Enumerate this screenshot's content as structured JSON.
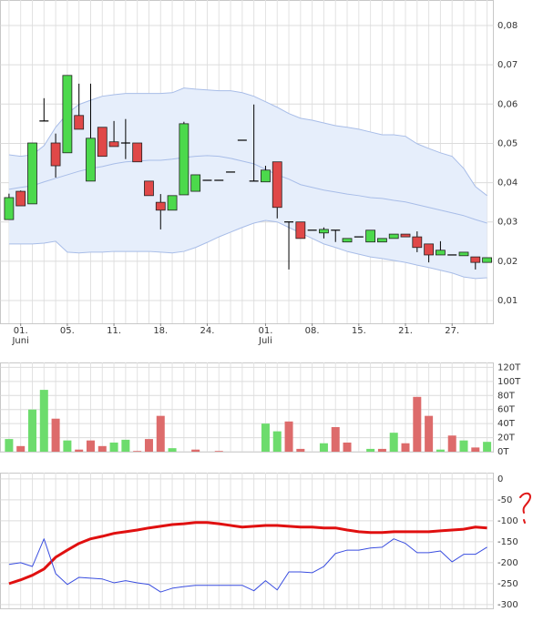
{
  "chart_data": [
    {
      "type": "candlestick",
      "categories": [
        null,
        "01.",
        null,
        null,
        null,
        "05.",
        null,
        null,
        null,
        "11.",
        null,
        null,
        null,
        "18.",
        null,
        null,
        null,
        "24.",
        null,
        null,
        null,
        null,
        "01.",
        null,
        null,
        null,
        "08.",
        null,
        null,
        null,
        "15.",
        null,
        null,
        null,
        "21.",
        null,
        null,
        null,
        "27.",
        null,
        null,
        null
      ],
      "month_labels": [
        null,
        "Juni",
        null,
        null,
        null,
        null,
        null,
        null,
        null,
        null,
        null,
        null,
        null,
        null,
        null,
        null,
        null,
        null,
        null,
        null,
        null,
        null,
        "Juli",
        null,
        null,
        null,
        null,
        null,
        null,
        null,
        null,
        null,
        null,
        null,
        null,
        null,
        null,
        null,
        null,
        null,
        null,
        null
      ],
      "open": [
        0.0306,
        0.0378,
        0.0346,
        0.0557,
        0.0501,
        0.0476,
        0.0571,
        0.0404,
        0.0541,
        0.0504,
        0.0501,
        0.0501,
        0.0404,
        0.035,
        0.033,
        0.0369,
        0.0378,
        0.0406,
        0.0406,
        0.0427,
        0.0508,
        0.0404,
        0.0402,
        0.0453,
        0.03,
        0.03,
        0.0279,
        0.0272,
        0.0279,
        0.0249,
        0.0262,
        0.0249,
        0.0249,
        0.0258,
        0.0269,
        0.0262,
        0.0244,
        0.0216,
        0.0216,
        0.0214,
        0.0211,
        0.0197
      ],
      "high": [
        0.0372,
        0.038,
        0.0501,
        0.0615,
        0.0525,
        0.0673,
        0.0652,
        0.0652,
        0.0541,
        0.0557,
        0.0562,
        0.0501,
        0.0404,
        0.0371,
        0.0367,
        0.0555,
        0.042,
        0.0406,
        0.0406,
        0.0427,
        0.0508,
        0.0599,
        0.0443,
        0.0453,
        0.03,
        0.03,
        0.0279,
        0.0286,
        0.0279,
        0.0258,
        0.0262,
        0.0279,
        0.0258,
        0.0269,
        0.0269,
        0.0276,
        0.0244,
        0.0251,
        0.0216,
        0.0223,
        0.0211,
        0.0209
      ],
      "low": [
        0.0306,
        0.0341,
        0.0346,
        0.0557,
        0.0413,
        0.0476,
        0.0536,
        0.0404,
        0.0467,
        0.0492,
        0.046,
        0.0453,
        0.0367,
        0.0281,
        0.033,
        0.0369,
        0.0378,
        0.0406,
        0.0406,
        0.0427,
        0.0508,
        0.0404,
        0.0402,
        0.0309,
        0.0179,
        0.0258,
        0.0279,
        0.0258,
        0.0249,
        0.0249,
        0.0262,
        0.0249,
        0.0249,
        0.0258,
        0.0262,
        0.0223,
        0.0197,
        0.0216,
        0.0216,
        0.0214,
        0.0179,
        0.0197
      ],
      "close": [
        0.0362,
        0.0341,
        0.0501,
        0.0557,
        0.0443,
        0.0673,
        0.0536,
        0.0513,
        0.0467,
        0.0492,
        0.0501,
        0.0453,
        0.0367,
        0.033,
        0.0367,
        0.055,
        0.042,
        0.0406,
        0.0406,
        0.0427,
        0.0508,
        0.0404,
        0.0432,
        0.0337,
        0.03,
        0.0258,
        0.0279,
        0.0281,
        0.0279,
        0.0258,
        0.0262,
        0.0279,
        0.0258,
        0.0269,
        0.0262,
        0.0235,
        0.0216,
        0.0228,
        0.0216,
        0.0223,
        0.0197,
        0.0209
      ],
      "up_color": "#4cd94c",
      "down_color": "#e04848",
      "flat_color": "#000000",
      "bands": {
        "upper": [
          0.0471,
          0.0467,
          0.0471,
          0.0494,
          0.0541,
          0.0576,
          0.0599,
          0.061,
          0.062,
          0.0624,
          0.0627,
          0.0627,
          0.0627,
          0.0627,
          0.0629,
          0.0641,
          0.0638,
          0.0636,
          0.0634,
          0.0634,
          0.0629,
          0.062,
          0.0606,
          0.0592,
          0.0576,
          0.0564,
          0.0559,
          0.0552,
          0.0545,
          0.0541,
          0.0536,
          0.0529,
          0.0522,
          0.0522,
          0.0518,
          0.0499,
          0.0487,
          0.0476,
          0.0467,
          0.0436,
          0.039,
          0.0367
        ],
        "middle": [
          0.0383,
          0.0388,
          0.0392,
          0.0402,
          0.0411,
          0.042,
          0.0429,
          0.0436,
          0.0441,
          0.0448,
          0.0453,
          0.0455,
          0.0457,
          0.0457,
          0.046,
          0.0464,
          0.0467,
          0.0469,
          0.0467,
          0.0462,
          0.0455,
          0.0448,
          0.0434,
          0.042,
          0.0409,
          0.0395,
          0.0388,
          0.0381,
          0.0376,
          0.0371,
          0.0367,
          0.0362,
          0.036,
          0.0355,
          0.0351,
          0.0344,
          0.0337,
          0.033,
          0.0323,
          0.0316,
          0.0306,
          0.0297
        ],
        "lower": [
          0.0244,
          0.0244,
          0.0244,
          0.0246,
          0.0251,
          0.0223,
          0.0221,
          0.0223,
          0.0223,
          0.0225,
          0.0225,
          0.0225,
          0.0225,
          0.0223,
          0.0221,
          0.0225,
          0.0235,
          0.0248,
          0.0262,
          0.0274,
          0.0286,
          0.0297,
          0.0304,
          0.03,
          0.0286,
          0.0272,
          0.0258,
          0.0244,
          0.0235,
          0.0225,
          0.0218,
          0.0211,
          0.0207,
          0.0202,
          0.0197,
          0.019,
          0.0184,
          0.0177,
          0.017,
          0.016,
          0.0156,
          0.0158
        ],
        "line_color": "#a8bde8",
        "fill_color": "#e6eefb"
      },
      "ylim": [
        0.0042,
        0.0865
      ],
      "yticks": [
        {
          "value": 0.01,
          "label": "0,01"
        },
        {
          "value": 0.02,
          "label": "0,02"
        },
        {
          "value": 0.03,
          "label": "0,03"
        },
        {
          "value": 0.04,
          "label": "0,04"
        },
        {
          "value": 0.05,
          "label": "0,05"
        },
        {
          "value": 0.06,
          "label": "0,06"
        },
        {
          "value": 0.07,
          "label": "0,07"
        },
        {
          "value": 0.08,
          "label": "0,08"
        }
      ],
      "grid": true
    },
    {
      "type": "bar",
      "values": [
        18,
        8,
        60,
        88,
        47,
        16,
        3,
        16,
        8,
        13,
        17,
        1,
        18,
        51,
        5,
        0,
        3,
        0,
        1,
        0,
        0,
        0,
        40,
        29,
        43,
        4,
        0,
        12,
        35,
        13,
        0,
        4,
        4,
        27,
        12,
        78,
        51,
        3,
        23,
        16,
        6,
        14
      ],
      "colors": [
        "#6ddc6d",
        "#dd6b6b",
        "#6ddc6d",
        "#6ddc6d",
        "#dd6b6b",
        "#6ddc6d",
        "#dd6b6b",
        "#dd6b6b",
        "#dd6b6b",
        "#6ddc6d",
        "#6ddc6d",
        "#dd6b6b",
        "#dd6b6b",
        "#dd6b6b",
        "#6ddc6d",
        "#6ddc6d",
        "#dd6b6b",
        "#dd6b6b",
        "#dd6b6b",
        "#dd6b6b",
        "#dd6b6b",
        "#dd6b6b",
        "#6ddc6d",
        "#6ddc6d",
        "#dd6b6b",
        "#dd6b6b",
        "#dd6b6b",
        "#6ddc6d",
        "#dd6b6b",
        "#dd6b6b",
        "#dd6b6b",
        "#6ddc6d",
        "#dd6b6b",
        "#6ddc6d",
        "#dd6b6b",
        "#dd6b6b",
        "#dd6b6b",
        "#6ddc6d",
        "#dd6b6b",
        "#6ddc6d",
        "#dd6b6b",
        "#6ddc6d"
      ],
      "ylim": [
        0,
        127
      ],
      "yticks": [
        {
          "value": 0,
          "label": "0T"
        },
        {
          "value": 20,
          "label": "20T"
        },
        {
          "value": 40,
          "label": "40T"
        },
        {
          "value": 60,
          "label": "60T"
        },
        {
          "value": 80,
          "label": "80T"
        },
        {
          "value": 100,
          "label": "100T"
        },
        {
          "value": 120,
          "label": "120T"
        }
      ],
      "grid": true
    },
    {
      "type": "line",
      "series": [
        {
          "color": "#e01010",
          "width": 3,
          "values": [
            -250,
            -241,
            -230,
            -215,
            -187,
            -170,
            -154,
            -143,
            -137,
            -130,
            -126,
            -122,
            -117,
            -113,
            -109,
            -107,
            -104,
            -104,
            -107,
            -111,
            -115,
            -113,
            -111,
            -111,
            -113,
            -115,
            -115,
            -117,
            -117,
            -122,
            -126,
            -128,
            -128,
            -126,
            -126,
            -126,
            -126,
            -124,
            -122,
            -120,
            -115,
            -117
          ]
        },
        {
          "color": "#3a4ee0",
          "width": 1,
          "values": [
            -204,
            -200,
            -209,
            -143,
            -226,
            -252,
            -235,
            -237,
            -239,
            -248,
            -243,
            -248,
            -252,
            -270,
            -261,
            -257,
            -254,
            -254,
            -254,
            -254,
            -254,
            -267,
            -243,
            -265,
            -222,
            -222,
            -224,
            -209,
            -178,
            -170,
            -170,
            -165,
            -163,
            -143,
            -154,
            -176,
            -176,
            -172,
            -198,
            -180,
            -180,
            -163
          ]
        }
      ],
      "ylim": [
        -309,
        15
      ],
      "yticks": [
        -300,
        -250,
        -200,
        -150,
        -100,
        -50,
        0
      ],
      "grid": true
    }
  ]
}
